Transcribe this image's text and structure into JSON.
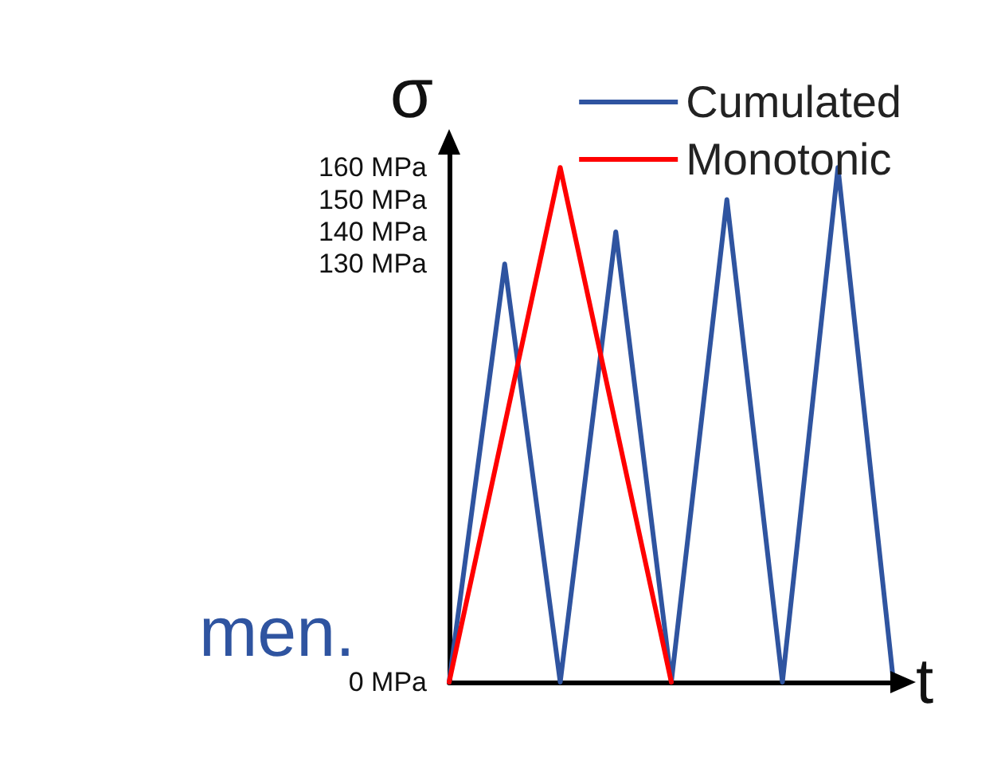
{
  "chart_data": {
    "type": "line",
    "xlabel": "t",
    "ylabel": "σ",
    "categories": [
      null,
      null,
      null,
      null,
      null,
      null,
      null,
      null,
      null
    ],
    "series": [
      {
        "name": "Cumulated",
        "color": "#2f54a0",
        "values": [
          0,
          130,
          0,
          140,
          0,
          150,
          0,
          160,
          0
        ]
      },
      {
        "name": "Monotonic",
        "color": "#ff0000",
        "values": [
          0,
          null,
          160,
          null,
          0,
          null,
          null,
          null,
          null
        ]
      }
    ],
    "ylim": [
      0,
      165
    ],
    "yticks": [
      {
        "value": 0,
        "label": "0 MPa"
      },
      {
        "value": 130,
        "label": "130 MPa"
      },
      {
        "value": 140,
        "label": "140 MPa"
      },
      {
        "value": 150,
        "label": "150 MPa"
      },
      {
        "value": 160,
        "label": "160 MPa"
      }
    ],
    "tick_labels": "y",
    "grid": false,
    "legend": "top right",
    "marker": "none",
    "line_style": "solid",
    "annotations": [
      "men."
    ]
  }
}
